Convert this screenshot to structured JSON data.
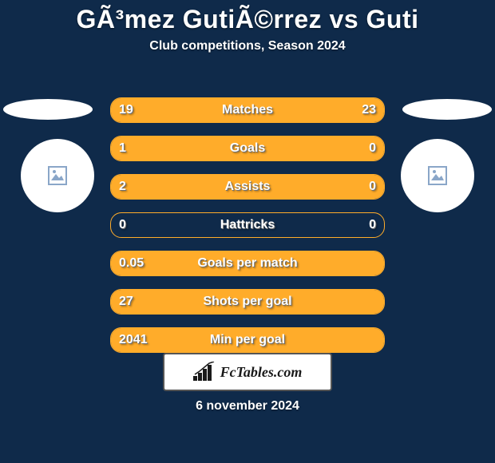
{
  "background_color": "#0f2a4a",
  "accent_color": "#ffac2a",
  "title": "GÃ³mez GutiÃ©rrez vs Guti",
  "title_fontsize": 32,
  "subtitle": "Club competitions, Season 2024",
  "subtitle_fontsize": 16,
  "date_label": "6 november 2024",
  "logo_text": "FcTables.com",
  "rows": [
    {
      "label": "Matches",
      "left": "19",
      "right": "23",
      "leftPct": 45,
      "rightPct": 55
    },
    {
      "label": "Goals",
      "left": "1",
      "right": "0",
      "leftPct": 76,
      "rightPct": 24
    },
    {
      "label": "Assists",
      "left": "2",
      "right": "0",
      "leftPct": 76,
      "rightPct": 24
    },
    {
      "label": "Hattricks",
      "left": "0",
      "right": "0",
      "leftPct": 0,
      "rightPct": 0
    },
    {
      "label": "Goals per match",
      "left": "0.05",
      "right": "",
      "leftPct": 100,
      "rightPct": 0
    },
    {
      "label": "Shots per goal",
      "left": "27",
      "right": "",
      "leftPct": 100,
      "rightPct": 0
    },
    {
      "label": "Min per goal",
      "left": "2041",
      "right": "",
      "leftPct": 100,
      "rightPct": 0
    }
  ],
  "badge_placeholder_color": "#8aa6c8"
}
